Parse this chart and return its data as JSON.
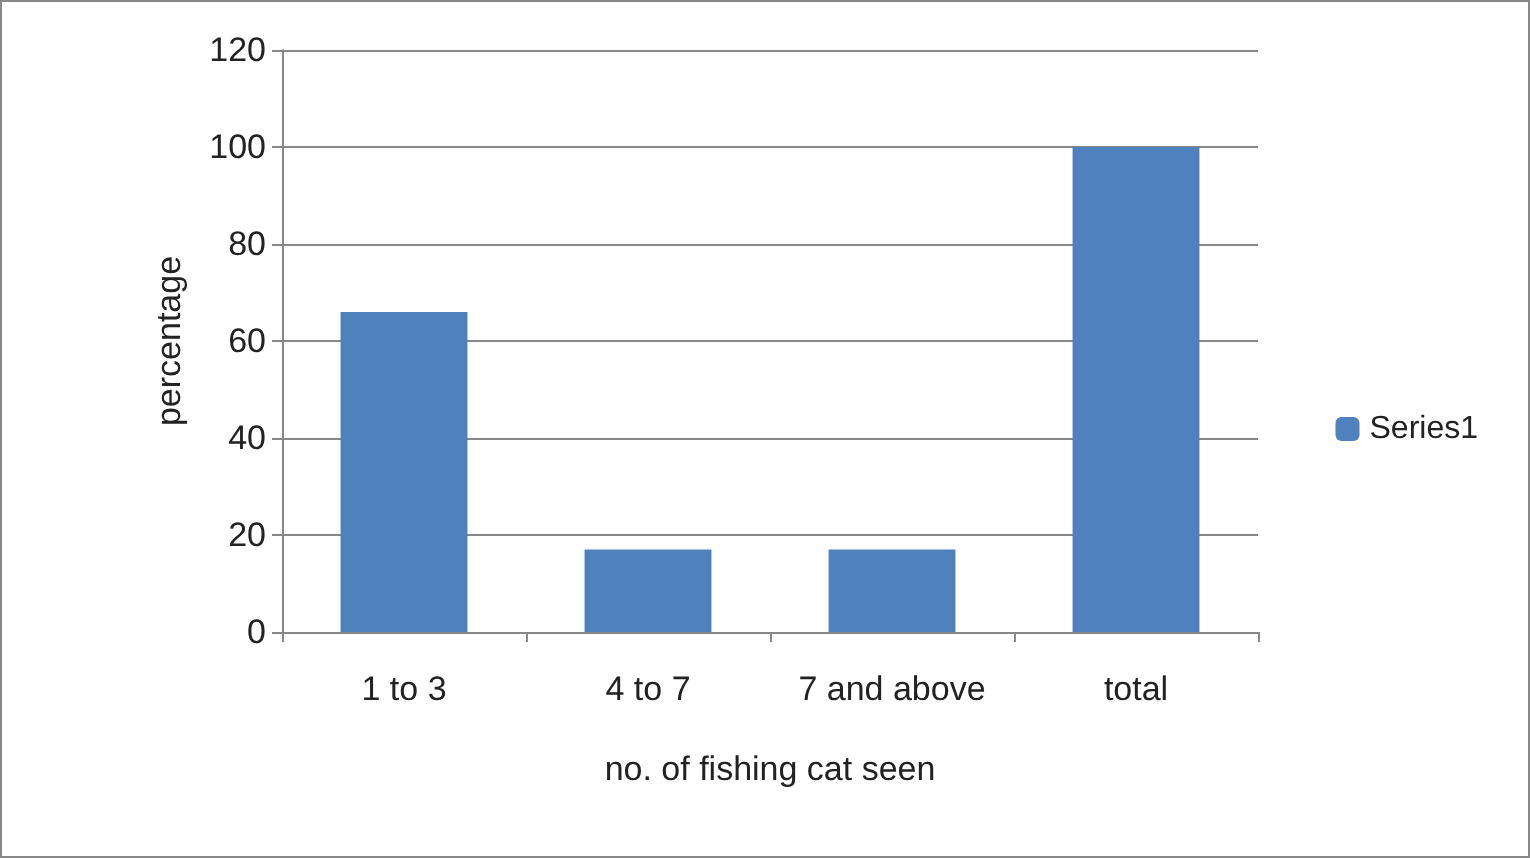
{
  "chart_data": {
    "type": "bar",
    "xlabel": "no. of fishing cat seen",
    "ylabel": "percentage",
    "categories": [
      "1 to 3",
      "4 to 7",
      "7 and above",
      "total"
    ],
    "series": [
      {
        "name": "Series1",
        "color": "#4f81bd",
        "values": [
          66,
          17,
          17,
          100
        ]
      }
    ],
    "ylim": [
      0,
      120
    ],
    "yticks": [
      0,
      20,
      40,
      60,
      80,
      100,
      120
    ],
    "grid": "y",
    "legend": "right"
  }
}
